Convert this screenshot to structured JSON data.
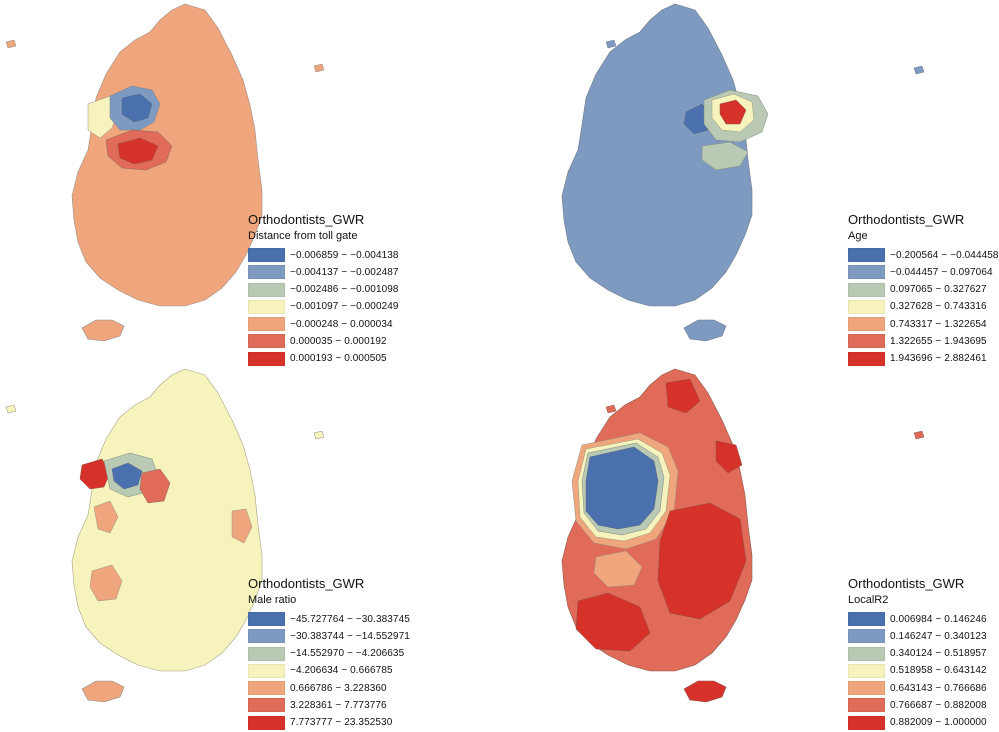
{
  "legend_colors": [
    "#4a71ae",
    "#7f9ac0",
    "#b9c9b3",
    "#f6f3bc",
    "#f0a67c",
    "#e06b58",
    "#d73229"
  ],
  "maps": [
    {
      "id": "distance",
      "title": "Orthodontists_GWR",
      "variable": "Distance from toll gate",
      "base_color": 4,
      "ranges": [
        "−0.006859 − −0.004138",
        "−0.004137 − −0.002487",
        "−0.002486 − −0.001098",
        "−0.001097 − −0.000249",
        "−0.000248 − 0.000034",
        "0.000035 − 0.000192",
        "0.000193 − 0.000505"
      ]
    },
    {
      "id": "age",
      "title": "Orthodontists_GWR",
      "variable": "Age",
      "base_color": 1,
      "ranges": [
        "−0.200564 − −0.044458",
        "−0.044457 − 0.097064",
        "0.097065 − 0.327627",
        "0.327628 − 0.743316",
        "0.743317 − 1.322654",
        "1.322655 − 1.943695",
        "1.943696 − 2.882461"
      ]
    },
    {
      "id": "male",
      "title": "Orthodontists_GWR",
      "variable": "Male ratio",
      "base_color": 3,
      "ranges": [
        "−45.727764 − −30.383745",
        "−30.383744 − −14.552971",
        "−14.552970 − −4.206635",
        "−4.206634 − 0.666785",
        "0.666786 − 3.228360",
        "3.228361 − 7.773776",
        "7.773777 − 23.352530"
      ]
    },
    {
      "id": "localr2",
      "title": "Orthodontists_GWR",
      "variable": "LocalR2",
      "base_color": 5,
      "ranges": [
        "0.006984 − 0.146246",
        "0.146247 − 0.340123",
        "0.340124 − 0.518957",
        "0.518958 − 0.643142",
        "0.643143 − 0.766686",
        "0.766687 − 0.882008",
        "0.882009 − 1.000000"
      ]
    }
  ]
}
